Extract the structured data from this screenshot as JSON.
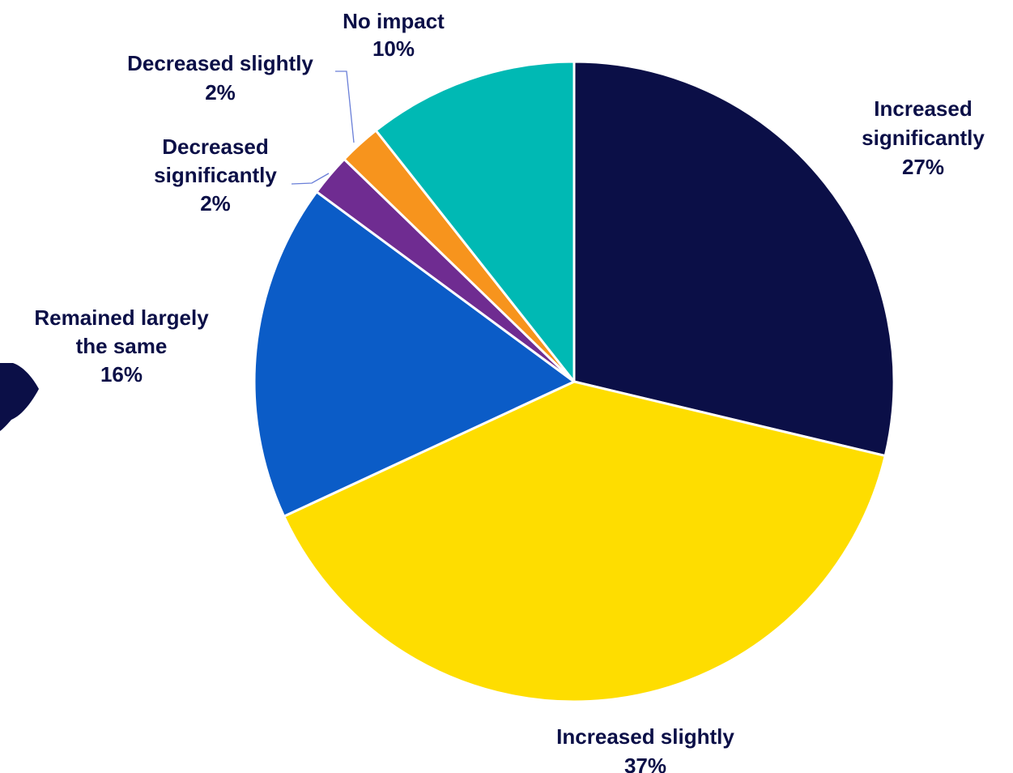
{
  "chart_data": {
    "type": "pie",
    "title": "",
    "start_angle_deg": 0,
    "direction": "clockwise",
    "slices": [
      {
        "label_lines": [
          "Increased",
          "significantly"
        ],
        "value": 27,
        "value_label": "27%",
        "color": "#0b0f47"
      },
      {
        "label_lines": [
          "Increased slightly"
        ],
        "value": 37,
        "value_label": "37%",
        "color": "#fedd00"
      },
      {
        "label_lines": [
          "Remained largely",
          "the same"
        ],
        "value": 16,
        "value_label": "16%",
        "color": "#0b5cc7"
      },
      {
        "label_lines": [
          "Decreased",
          "significantly"
        ],
        "value": 2,
        "value_label": "2%",
        "color": "#6f2c91"
      },
      {
        "label_lines": [
          "Decreased slightly"
        ],
        "value": 2,
        "value_label": "2%",
        "color": "#f7941d"
      },
      {
        "label_lines": [
          "No impact"
        ],
        "value": 10,
        "value_label": "10%",
        "color": "#00b9b4"
      }
    ],
    "label_color": "#0b0f47",
    "leader_line_color": "#6a7fd8",
    "slice_border_color": "#ffffff"
  },
  "decoration": {
    "left_shape_color": "#0b0f47"
  }
}
